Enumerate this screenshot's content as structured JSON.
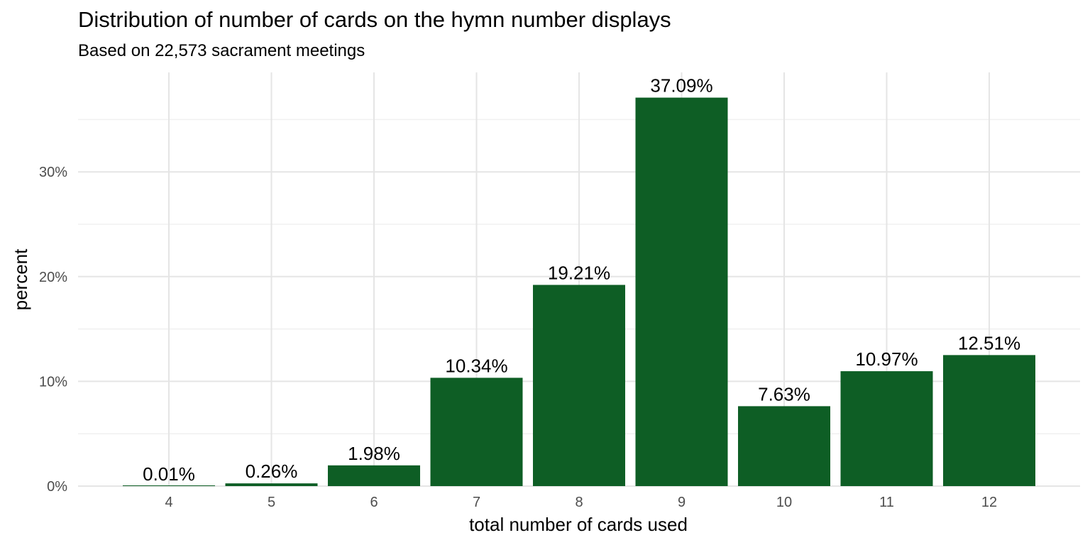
{
  "chart_data": {
    "type": "bar",
    "title": "Distribution of number of cards on the hymn number displays",
    "subtitle": "Based on 22,573 sacrament meetings",
    "xlabel": "total number of cards used",
    "ylabel": "percent",
    "categories": [
      "4",
      "5",
      "6",
      "7",
      "8",
      "9",
      "10",
      "11",
      "12"
    ],
    "values": [
      0.01,
      0.26,
      1.98,
      10.34,
      19.21,
      37.09,
      7.63,
      10.97,
      12.51
    ],
    "value_labels": [
      "0.01%",
      "0.26%",
      "1.98%",
      "10.34%",
      "19.21%",
      "37.09%",
      "7.63%",
      "10.97%",
      "12.51%"
    ],
    "ylim": [
      0,
      39.5
    ],
    "y_ticks": [
      0,
      10,
      20,
      30
    ],
    "y_tick_labels": [
      "0%",
      "10%",
      "20%",
      "30%"
    ],
    "grid": true,
    "legend": "none",
    "colors": {
      "bar": "#0e5e25",
      "grid_major": "#e5e5e5",
      "grid_minor": "#f0f0f0"
    }
  }
}
